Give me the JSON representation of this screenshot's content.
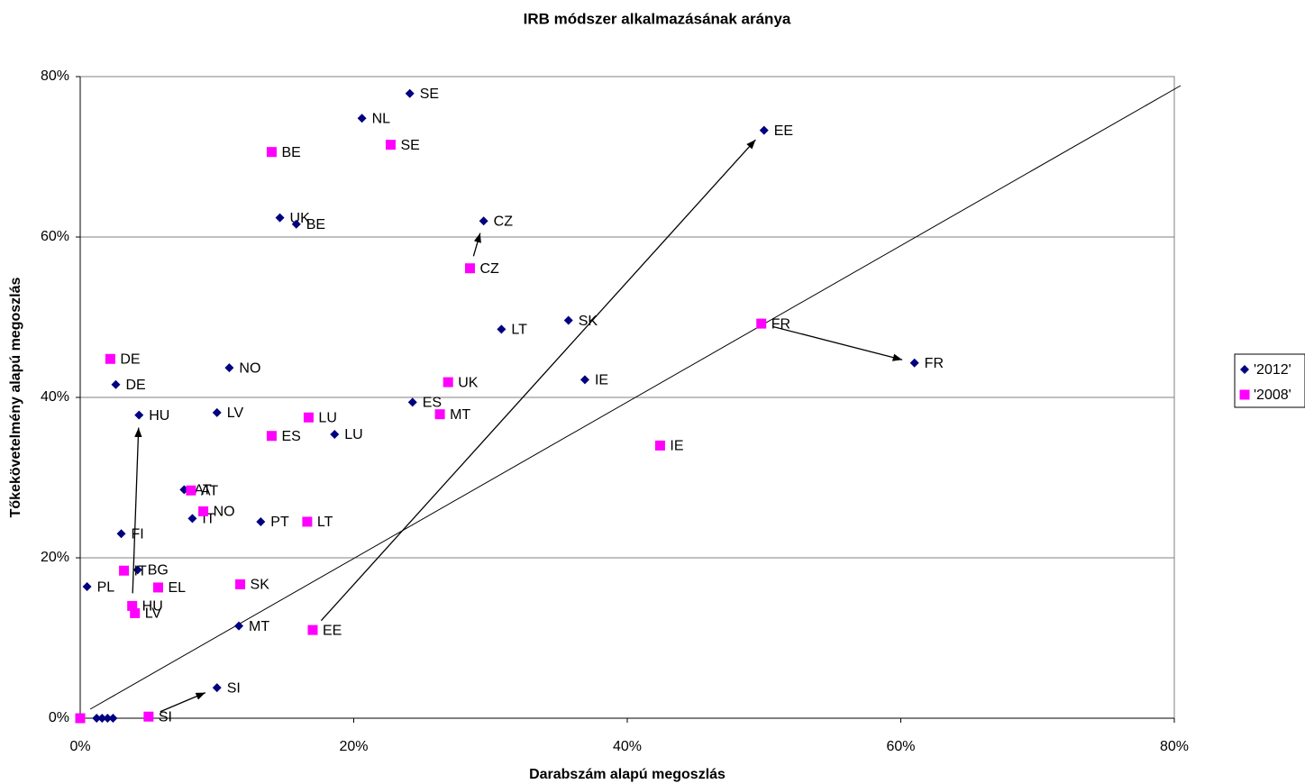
{
  "chart_data": {
    "type": "scatter",
    "title": "IRB módszer alkalmazásának aránya",
    "x_label": "Darabszám alapú megoszlás",
    "y_label": "Tőkekövetelmény alapú megoszlás",
    "xlim": [
      0,
      80
    ],
    "ylim": [
      0,
      80
    ],
    "xticks": [
      {
        "value": 0,
        "label": "0%"
      },
      {
        "value": 20,
        "label": "20%"
      },
      {
        "value": 40,
        "label": "40%"
      },
      {
        "value": 60,
        "label": "60%"
      },
      {
        "value": 80,
        "label": "80%"
      }
    ],
    "yticks": [
      {
        "value": 0,
        "label": "0%"
      },
      {
        "value": 20,
        "label": "20%"
      },
      {
        "value": 40,
        "label": "40%"
      },
      {
        "value": 60,
        "label": "60%"
      },
      {
        "value": 80,
        "label": "80%"
      }
    ],
    "grid": true,
    "legend": "right",
    "series": [
      {
        "name": "'2012'",
        "color": "#000080",
        "marker": "diamond",
        "x": [
          24.1,
          20.6,
          50.0,
          14.6,
          15.8,
          29.5,
          30.8,
          35.7,
          61.0,
          36.9,
          10.9,
          2.6,
          4.3,
          10.0,
          24.3,
          18.6,
          7.6,
          8.2,
          13.2,
          3.0,
          4.2,
          0.5,
          11.6,
          10.0,
          1.2,
          1.6,
          2.0,
          2.4
        ],
        "values": [
          77.9,
          74.8,
          73.3,
          62.4,
          61.6,
          62.0,
          48.5,
          49.6,
          44.3,
          42.2,
          43.7,
          41.6,
          37.8,
          38.1,
          39.4,
          35.4,
          28.5,
          24.9,
          24.5,
          23.0,
          18.5,
          16.4,
          11.5,
          3.8,
          0,
          0,
          0,
          0
        ],
        "labels": [
          "SE",
          "NL",
          "EE",
          "UK",
          "BE",
          "CZ",
          "LT",
          "SK",
          "FR",
          "IE",
          "NO",
          "DE",
          "HU",
          "LV",
          "ES",
          "LU",
          "AT",
          "IT",
          "PT",
          "FI",
          "BG",
          "PL",
          "MT",
          "SI",
          null,
          null,
          null,
          null
        ]
      },
      {
        "name": "'2008'",
        "color": "#ff00ff",
        "marker": "square",
        "x": [
          22.7,
          14.0,
          28.5,
          49.8,
          2.2,
          26.9,
          26.3,
          16.7,
          14.0,
          42.4,
          8.1,
          9.0,
          16.6,
          11.7,
          3.2,
          5.7,
          3.8,
          4.0,
          17.0,
          5.0,
          0
        ],
        "values": [
          71.5,
          70.6,
          56.1,
          49.2,
          44.8,
          41.9,
          37.9,
          37.5,
          35.2,
          34.0,
          28.4,
          25.8,
          24.5,
          16.7,
          18.4,
          16.3,
          14.0,
          13.1,
          11.0,
          0.2,
          0
        ],
        "labels": [
          "SE",
          "BE",
          "CZ",
          "FR",
          "DE",
          "UK",
          "MT",
          "LU",
          "ES",
          "IE",
          "AT",
          "NO",
          "LT",
          "SK",
          "IT",
          "EL",
          "HU",
          "LV",
          "EE",
          "SI",
          null
        ]
      }
    ]
  }
}
